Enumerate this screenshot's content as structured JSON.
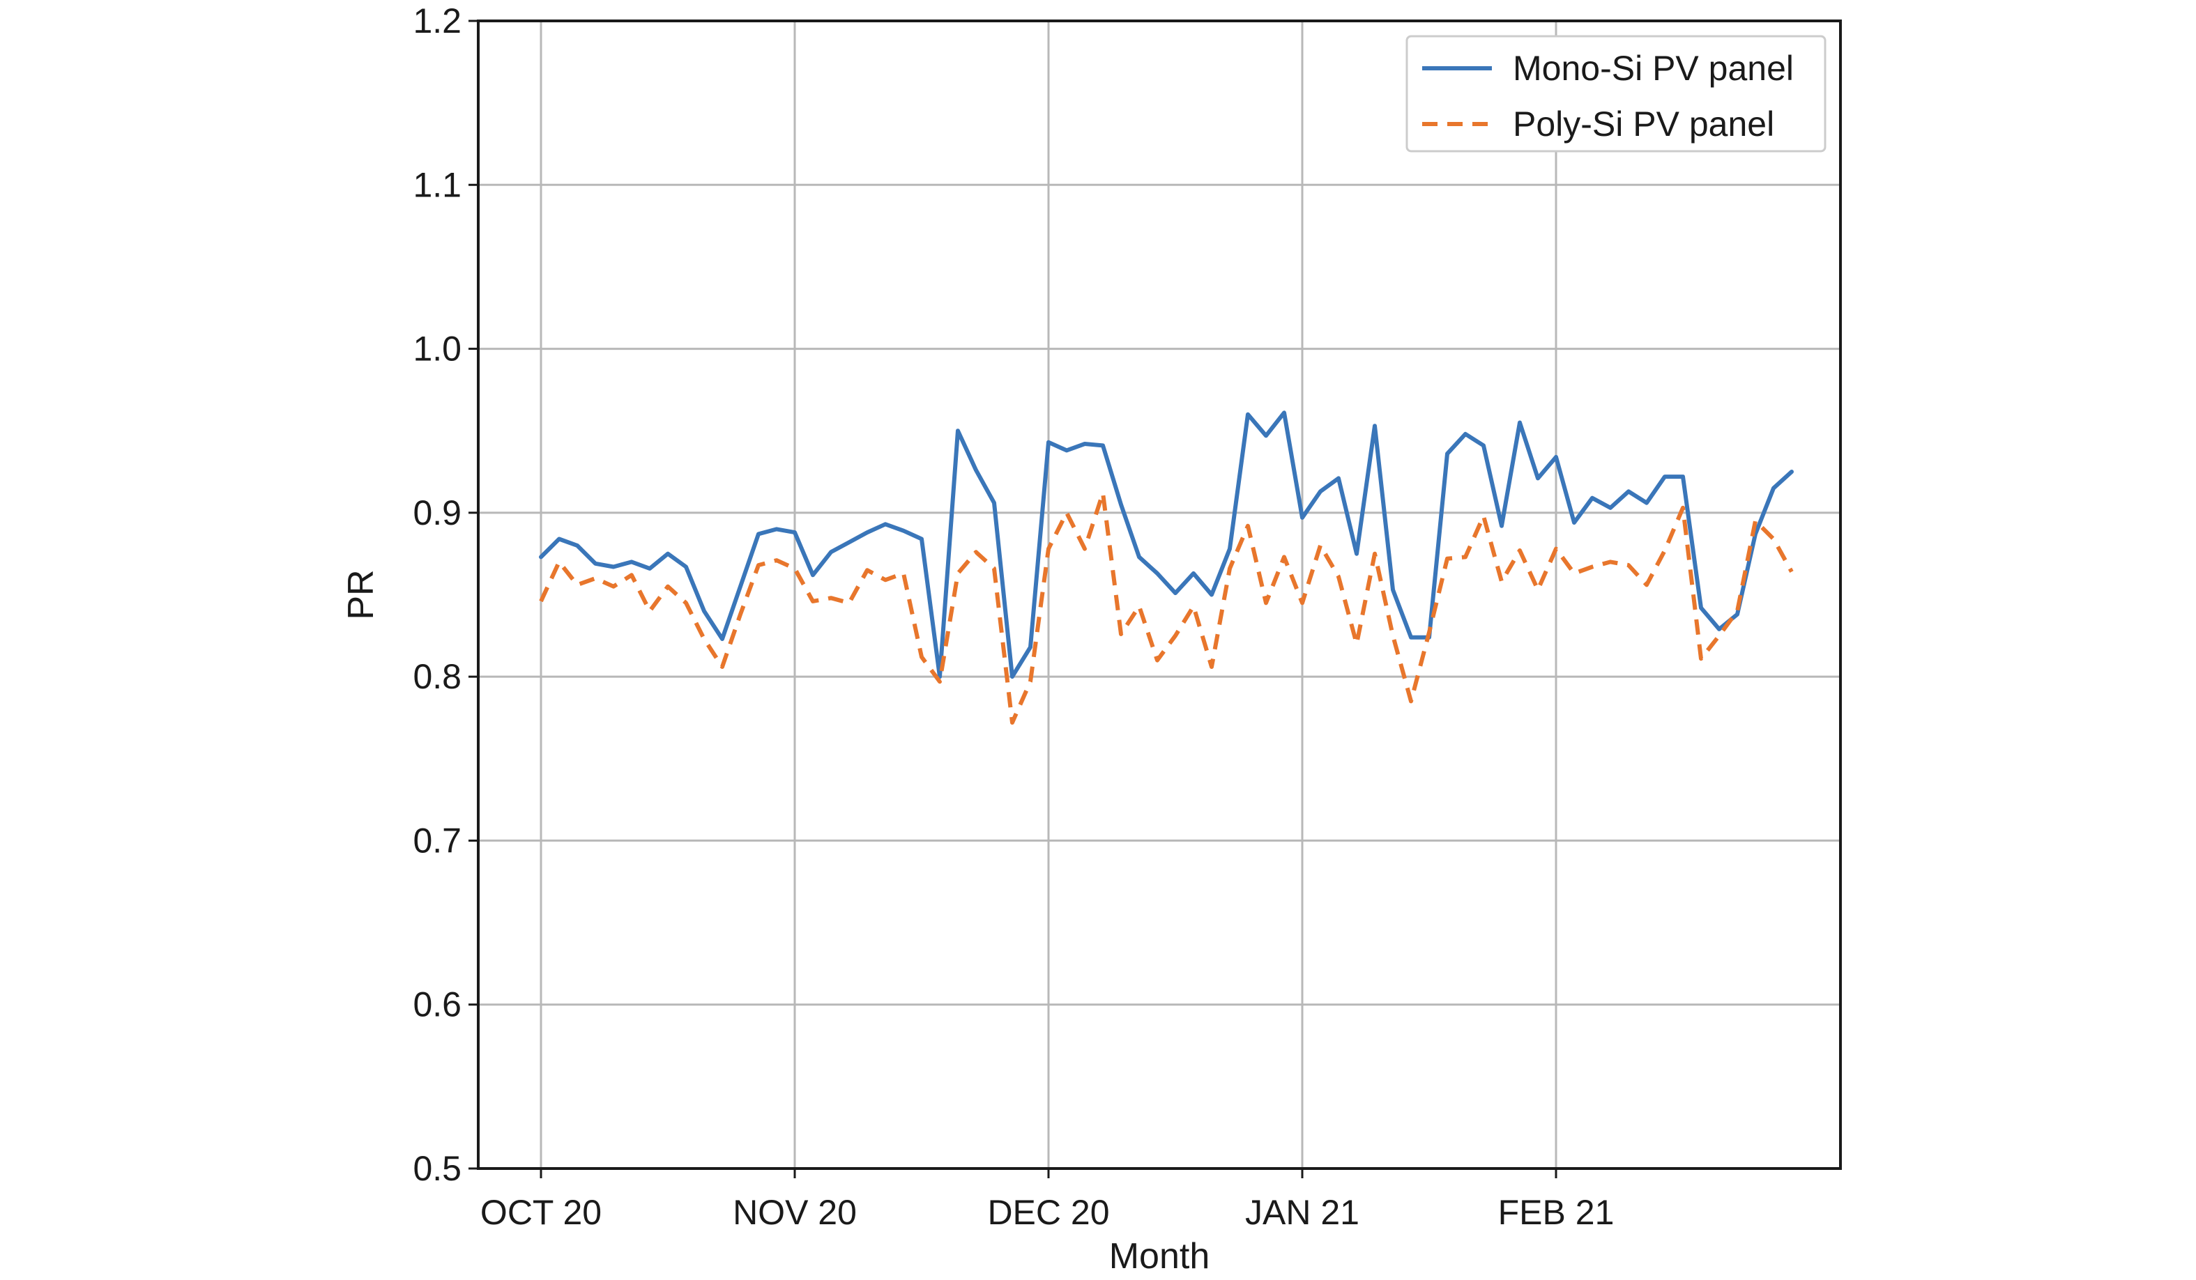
{
  "chart_data": {
    "type": "line",
    "xlabel": "Month",
    "ylabel": "PR",
    "ylim": [
      0.5,
      1.2
    ],
    "yticks": [
      "0.5",
      "0.6",
      "0.7",
      "0.8",
      "0.9",
      "1.0",
      "1.1",
      "1.2"
    ],
    "xticks": [
      "OCT 20",
      "NOV 20",
      "DEC 20",
      "JAN 21",
      "FEB 21"
    ],
    "grid": true,
    "legend_position": "top-right",
    "series": [
      {
        "name": "Mono-Si PV panel",
        "color": "#3a76b9",
        "style": "solid",
        "values": [
          0.873,
          0.884,
          0.88,
          0.869,
          0.867,
          0.87,
          0.866,
          0.875,
          0.867,
          0.84,
          0.823,
          0.855,
          0.887,
          0.89,
          0.888,
          0.862,
          0.876,
          0.882,
          0.888,
          0.893,
          0.889,
          0.884,
          0.8,
          0.95,
          0.926,
          0.906,
          0.8,
          0.818,
          0.943,
          0.938,
          0.942,
          0.941,
          0.905,
          0.873,
          0.863,
          0.851,
          0.863,
          0.85,
          0.878,
          0.96,
          0.947,
          0.961,
          0.897,
          0.913,
          0.921,
          0.875,
          0.953,
          0.853,
          0.824,
          0.824,
          0.936,
          0.948,
          0.941,
          0.892,
          0.955,
          0.921,
          0.934,
          0.894,
          0.909,
          0.903,
          0.913,
          0.906,
          0.922,
          0.922,
          0.842,
          0.829,
          0.838,
          0.887,
          0.915,
          0.925
        ]
      },
      {
        "name": "Poly-Si PV panel",
        "color": "#e8762c",
        "style": "dashed",
        "values": [
          0.846,
          0.87,
          0.856,
          0.86,
          0.855,
          0.862,
          0.84,
          0.855,
          0.845,
          0.823,
          0.806,
          0.838,
          0.868,
          0.871,
          0.866,
          0.846,
          0.848,
          0.845,
          0.865,
          0.859,
          0.863,
          0.812,
          0.797,
          0.863,
          0.876,
          0.866,
          0.772,
          0.797,
          0.878,
          0.9,
          0.878,
          0.912,
          0.826,
          0.843,
          0.81,
          0.825,
          0.843,
          0.806,
          0.866,
          0.892,
          0.845,
          0.873,
          0.845,
          0.88,
          0.861,
          0.82,
          0.875,
          0.825,
          0.785,
          0.827,
          0.872,
          0.873,
          0.898,
          0.858,
          0.877,
          0.853,
          0.878,
          0.863,
          0.867,
          0.87,
          0.868,
          0.856,
          0.877,
          0.903,
          0.811,
          0.825,
          0.84,
          0.895,
          0.884,
          0.864
        ]
      }
    ]
  }
}
